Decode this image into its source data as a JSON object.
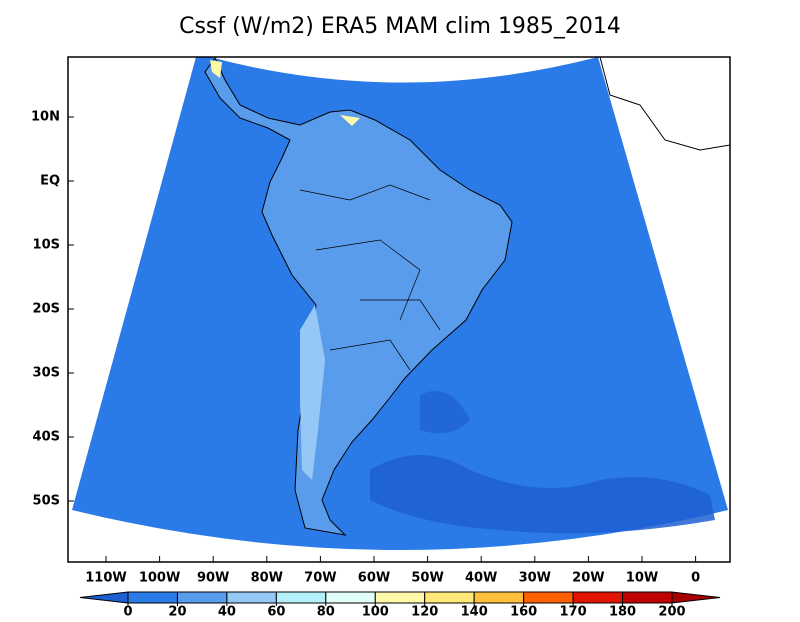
{
  "title": "Cssf (W/m2) ERA5 MAM clim 1985_2014",
  "lat_labels": [
    "10N",
    "EQ",
    "10S",
    "20S",
    "30S",
    "40S",
    "50S"
  ],
  "lon_labels": [
    "110W",
    "100W",
    "90W",
    "80W",
    "70W",
    "60W",
    "50W",
    "40W",
    "30W",
    "20W",
    "10W",
    "0"
  ],
  "colorbar": {
    "levels": [
      0,
      20,
      40,
      60,
      80,
      100,
      120,
      140,
      160,
      170,
      180,
      200
    ],
    "colors": [
      "#1e5fd2",
      "#2a7be8",
      "#5a9cec",
      "#96c8f6",
      "#b4f0fa",
      "#e1fffa",
      "#fffaaa",
      "#ffe878",
      "#ffc03c",
      "#ff6000",
      "#e11400",
      "#c00000",
      "#a50000"
    ]
  }
}
